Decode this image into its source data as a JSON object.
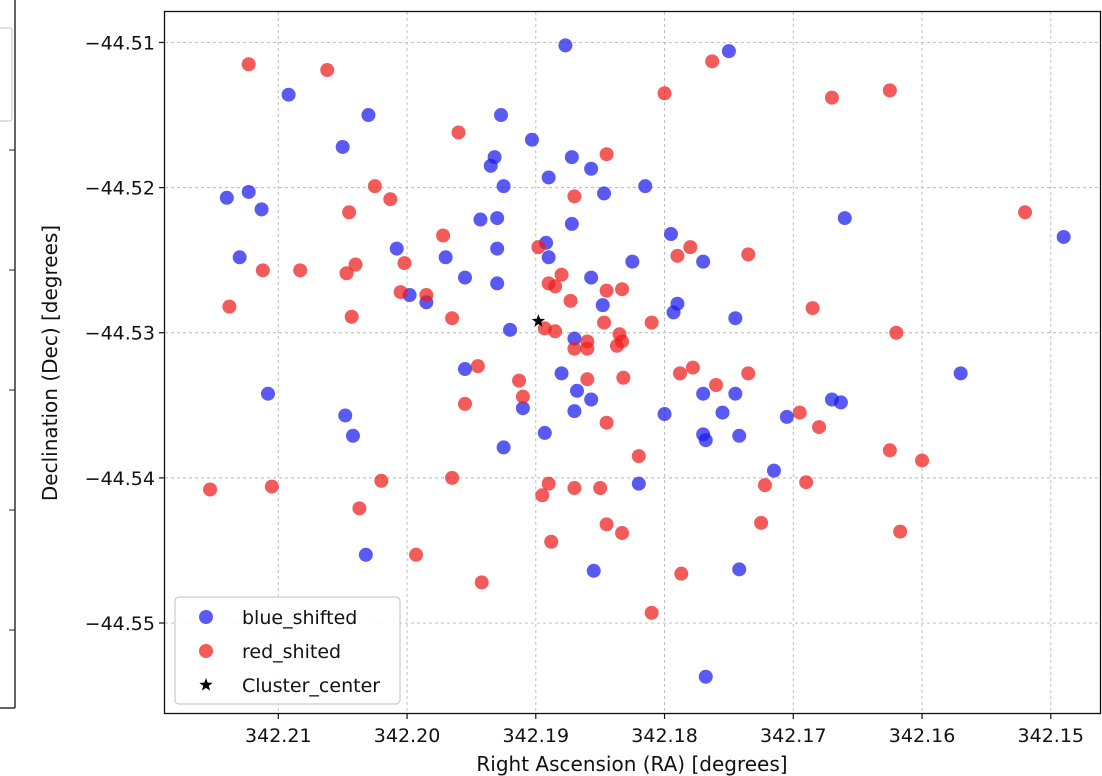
{
  "chart_data": {
    "type": "scatter",
    "xlabel": "Right Ascension (RA) [degrees]",
    "ylabel": "Declination (Dec) [degrees]",
    "xlim": [
      342.2188,
      342.1461
    ],
    "ylim": [
      -44.5562,
      -44.5079
    ],
    "x_ticks": [
      342.21,
      342.2,
      342.19,
      342.18,
      342.17,
      342.16,
      342.15
    ],
    "x_tick_labels": [
      "342.21",
      "342.20",
      "342.19",
      "342.18",
      "342.17",
      "342.16",
      "342.15"
    ],
    "y_ticks": [
      -44.51,
      -44.52,
      -44.53,
      -44.54,
      -44.55
    ],
    "y_tick_labels": [
      "−44.51",
      "−44.52",
      "−44.53",
      "−44.54",
      "−44.55"
    ],
    "grid": true,
    "legend_position": "lower-left",
    "series": [
      {
        "name": "blue_shifted",
        "color": "#1a1aee",
        "marker": "circle",
        "points": [
          [
            342.1877,
            -44.5102
          ],
          [
            342.175,
            -44.5106
          ],
          [
            342.2092,
            -44.5136
          ],
          [
            342.203,
            -44.515
          ],
          [
            342.1927,
            -44.515
          ],
          [
            342.205,
            -44.5172
          ],
          [
            342.1903,
            -44.5167
          ],
          [
            342.1932,
            -44.5179
          ],
          [
            342.1935,
            -44.5185
          ],
          [
            342.1872,
            -44.5179
          ],
          [
            342.1857,
            -44.5187
          ],
          [
            342.189,
            -44.5193
          ],
          [
            342.1925,
            -44.5199
          ],
          [
            342.1847,
            -44.5204
          ],
          [
            342.1815,
            -44.5199
          ],
          [
            342.214,
            -44.5207
          ],
          [
            342.2123,
            -44.5203
          ],
          [
            342.2113,
            -44.5215
          ],
          [
            342.1943,
            -44.5222
          ],
          [
            342.193,
            -44.5221
          ],
          [
            342.1872,
            -44.5225
          ],
          [
            342.166,
            -44.5221
          ],
          [
            342.1795,
            -44.5232
          ],
          [
            342.213,
            -44.5248
          ],
          [
            342.2008,
            -44.5242
          ],
          [
            342.197,
            -44.5248
          ],
          [
            342.193,
            -44.5242
          ],
          [
            342.1892,
            -44.5238
          ],
          [
            342.189,
            -44.5248
          ],
          [
            342.1825,
            -44.5251
          ],
          [
            342.177,
            -44.5251
          ],
          [
            342.149,
            -44.5234
          ],
          [
            342.1955,
            -44.5262
          ],
          [
            342.193,
            -44.5266
          ],
          [
            342.1857,
            -44.5262
          ],
          [
            342.1998,
            -44.5274
          ],
          [
            342.1985,
            -44.5279
          ],
          [
            342.1848,
            -44.5281
          ],
          [
            342.179,
            -44.528
          ],
          [
            342.1793,
            -44.5286
          ],
          [
            342.1745,
            -44.529
          ],
          [
            342.192,
            -44.5298
          ],
          [
            342.187,
            -44.5304
          ],
          [
            342.1955,
            -44.5325
          ],
          [
            342.188,
            -44.5328
          ],
          [
            342.157,
            -44.5328
          ],
          [
            342.2108,
            -44.5342
          ],
          [
            342.1868,
            -44.534
          ],
          [
            342.1857,
            -44.5346
          ],
          [
            342.177,
            -44.5342
          ],
          [
            342.1745,
            -44.5342
          ],
          [
            342.167,
            -44.5346
          ],
          [
            342.1663,
            -44.5348
          ],
          [
            342.191,
            -44.5352
          ],
          [
            342.187,
            -44.5354
          ],
          [
            342.18,
            -44.5356
          ],
          [
            342.1755,
            -44.5355
          ],
          [
            342.1705,
            -44.5358
          ],
          [
            342.2048,
            -44.5357
          ],
          [
            342.2042,
            -44.5371
          ],
          [
            342.1893,
            -44.5369
          ],
          [
            342.177,
            -44.537
          ],
          [
            342.1768,
            -44.5374
          ],
          [
            342.1742,
            -44.5371
          ],
          [
            342.1925,
            -44.5379
          ],
          [
            342.1715,
            -44.5395
          ],
          [
            342.182,
            -44.5404
          ],
          [
            342.2032,
            -44.5453
          ],
          [
            342.1855,
            -44.5464
          ],
          [
            342.1742,
            -44.5463
          ],
          [
            342.1768,
            -44.5537
          ]
        ]
      },
      {
        "name": "red_shited",
        "color": "#ee1a1a",
        "marker": "circle",
        "points": [
          [
            342.2123,
            -44.5115
          ],
          [
            342.2062,
            -44.5119
          ],
          [
            342.1763,
            -44.5113
          ],
          [
            342.18,
            -44.5135
          ],
          [
            342.167,
            -44.5138
          ],
          [
            342.1625,
            -44.5133
          ],
          [
            342.196,
            -44.5162
          ],
          [
            342.1845,
            -44.5177
          ],
          [
            342.2025,
            -44.5199
          ],
          [
            342.2013,
            -44.5208
          ],
          [
            342.187,
            -44.5206
          ],
          [
            342.2045,
            -44.5217
          ],
          [
            342.152,
            -44.5217
          ],
          [
            342.1972,
            -44.5233
          ],
          [
            342.178,
            -44.5241
          ],
          [
            342.1898,
            -44.5241
          ],
          [
            342.179,
            -44.5247
          ],
          [
            342.1735,
            -44.5246
          ],
          [
            342.204,
            -44.5253
          ],
          [
            342.2002,
            -44.5252
          ],
          [
            342.2112,
            -44.5257
          ],
          [
            342.2083,
            -44.5257
          ],
          [
            342.2047,
            -44.5259
          ],
          [
            342.188,
            -44.526
          ],
          [
            342.189,
            -44.5266
          ],
          [
            342.1885,
            -44.5268
          ],
          [
            342.1845,
            -44.5271
          ],
          [
            342.1833,
            -44.527
          ],
          [
            342.2005,
            -44.5272
          ],
          [
            342.1985,
            -44.5274
          ],
          [
            342.1873,
            -44.5278
          ],
          [
            342.2138,
            -44.5282
          ],
          [
            342.1685,
            -44.5283
          ],
          [
            342.2043,
            -44.5289
          ],
          [
            342.1965,
            -44.529
          ],
          [
            342.1847,
            -44.5293
          ],
          [
            342.181,
            -44.5293
          ],
          [
            342.1893,
            -44.5297
          ],
          [
            342.1885,
            -44.5299
          ],
          [
            342.1835,
            -44.5301
          ],
          [
            342.162,
            -44.53
          ],
          [
            342.186,
            -44.5306
          ],
          [
            342.1833,
            -44.5306
          ],
          [
            342.1837,
            -44.5309
          ],
          [
            342.187,
            -44.5311
          ],
          [
            342.186,
            -44.5311
          ],
          [
            342.1945,
            -44.5323
          ],
          [
            342.1778,
            -44.5324
          ],
          [
            342.1788,
            -44.5328
          ],
          [
            342.1735,
            -44.5328
          ],
          [
            342.186,
            -44.5332
          ],
          [
            342.1832,
            -44.5331
          ],
          [
            342.1913,
            -44.5333
          ],
          [
            342.176,
            -44.5336
          ],
          [
            342.191,
            -44.5344
          ],
          [
            342.1955,
            -44.5349
          ],
          [
            342.1695,
            -44.5355
          ],
          [
            342.168,
            -44.5365
          ],
          [
            342.1845,
            -44.5362
          ],
          [
            342.1625,
            -44.5381
          ],
          [
            342.182,
            -44.5385
          ],
          [
            342.16,
            -44.5388
          ],
          [
            342.1965,
            -44.54
          ],
          [
            342.202,
            -44.5402
          ],
          [
            342.189,
            -44.5404
          ],
          [
            342.187,
            -44.5407
          ],
          [
            342.185,
            -44.5407
          ],
          [
            342.1722,
            -44.5405
          ],
          [
            342.169,
            -44.5403
          ],
          [
            342.2153,
            -44.5408
          ],
          [
            342.2105,
            -44.5406
          ],
          [
            342.1895,
            -44.5412
          ],
          [
            342.2037,
            -44.5421
          ],
          [
            342.1845,
            -44.5432
          ],
          [
            342.1725,
            -44.5431
          ],
          [
            342.1833,
            -44.5438
          ],
          [
            342.1617,
            -44.5437
          ],
          [
            342.1888,
            -44.5444
          ],
          [
            342.1993,
            -44.5453
          ],
          [
            342.1942,
            -44.5472
          ],
          [
            342.1787,
            -44.5466
          ],
          [
            342.181,
            -44.5493
          ]
        ]
      },
      {
        "name": "Cluster_center",
        "color": "#000000",
        "marker": "star",
        "points": [
          [
            342.1898,
            -44.5292
          ]
        ]
      }
    ]
  }
}
